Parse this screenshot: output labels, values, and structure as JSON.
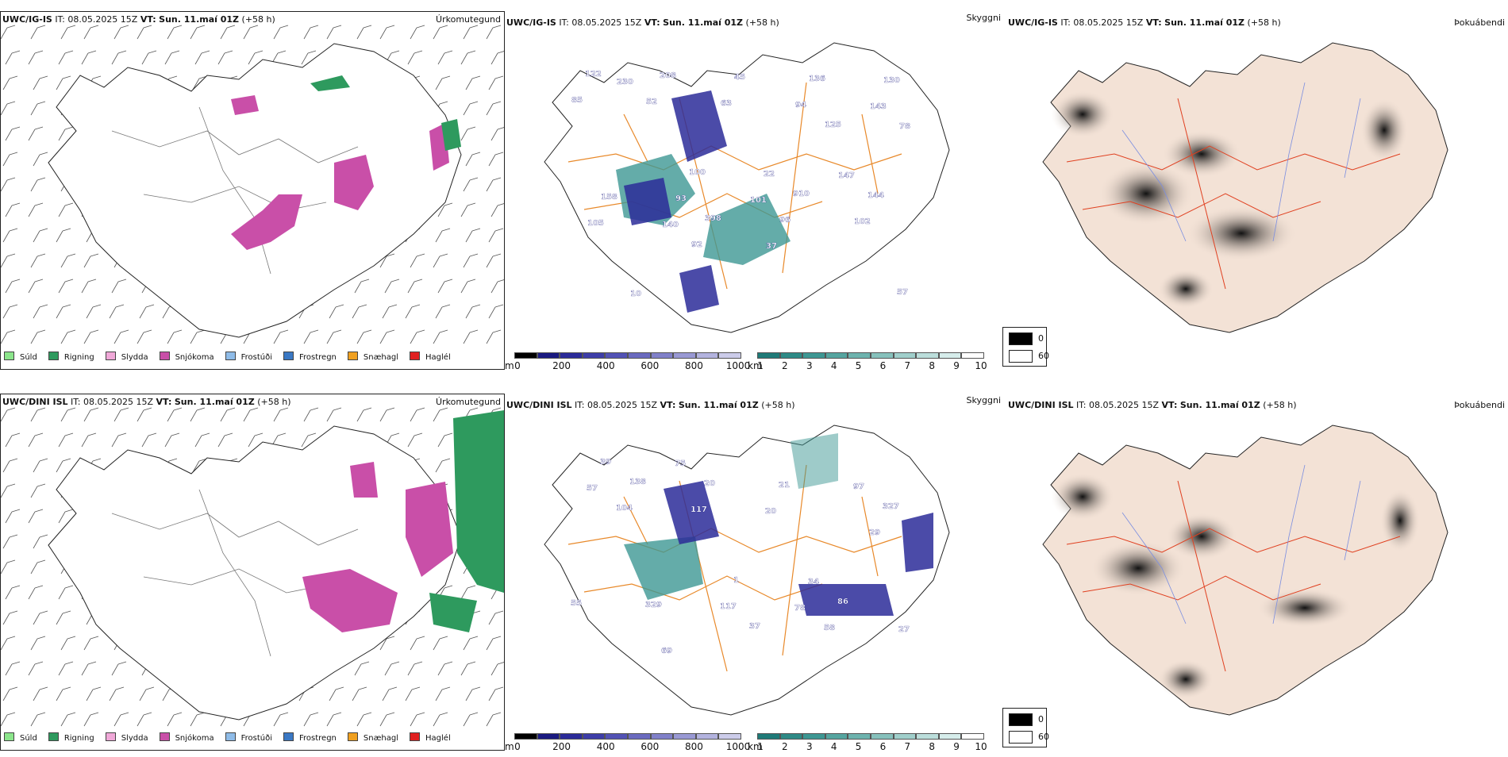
{
  "rows": [
    {
      "model": "UWC/IG-IS",
      "it_label": "IT:",
      "it_value": "08.05.2025 15Z",
      "vt_label": "VT:",
      "vt_value": "Sun. 11.maí 01Z",
      "lead": "(+58 h)"
    },
    {
      "model": "UWC/DINI ISL",
      "it_label": "IT:",
      "it_value": "08.05.2025 15Z",
      "vt_label": "VT:",
      "vt_value": "Sun. 11.maí 01Z",
      "lead": "(+58 h)"
    }
  ],
  "panel_titles": {
    "precip_type": "Úrkomutegund",
    "visibility": "Skyggni",
    "fog": "Þokuábendi"
  },
  "precip_legend": [
    {
      "label": "Súld",
      "color": "#8be58b"
    },
    {
      "label": "Rigning",
      "color": "#2e9a5e"
    },
    {
      "label": "Slydda",
      "color": "#f0a8d8"
    },
    {
      "label": "Snjókoma",
      "color": "#c94fa8"
    },
    {
      "label": "Frostúði",
      "color": "#8fbce8"
    },
    {
      "label": "Frostregn",
      "color": "#3a78c4"
    },
    {
      "label": "Snæhagl",
      "color": "#f0a020"
    },
    {
      "label": "Haglél",
      "color": "#e02020"
    }
  ],
  "colorbar_m": {
    "unit": "m",
    "ticks": [
      "0",
      "200",
      "400",
      "600",
      "800",
      "1000"
    ],
    "colors": [
      "#000000",
      "#1a1a80",
      "#2b2b99",
      "#3d3da8",
      "#5252b5",
      "#6a6abf",
      "#8080c9",
      "#9999d4",
      "#b3b3df",
      "#ccccea"
    ]
  },
  "colorbar_km": {
    "unit": "km",
    "ticks": [
      "1",
      "2",
      "3",
      "4",
      "5",
      "6",
      "7",
      "8",
      "9",
      "10"
    ],
    "colors": [
      "#1f7a78",
      "#2e8a86",
      "#3d9793",
      "#55a5a0",
      "#6db3ae",
      "#86c1bc",
      "#a0cfcb",
      "#bbdedb",
      "#d6edeb",
      "#ffffff"
    ]
  },
  "fog_key": [
    {
      "label": "0",
      "color": "#000000"
    },
    {
      "label": "60",
      "color": "#ffffff"
    }
  ],
  "colors": {
    "roads": "#e8892a",
    "coast": "#222222",
    "fog_land": "#f3e2d6",
    "fog_roads": "#e04020",
    "fog_rivers": "#7b8ee0"
  },
  "vis_labels_top": [
    "122",
    "100",
    "910",
    "57",
    "208",
    "22",
    "144",
    "10",
    "45",
    "147",
    "158",
    "398",
    "136",
    "85",
    "93",
    "96",
    "130",
    "52",
    "101",
    "102",
    "230",
    "63",
    "125",
    "105",
    "92",
    "94",
    "78",
    "140",
    "37",
    "143"
  ],
  "vis_labels_bottom": [
    "138",
    "1",
    "86",
    "39",
    "20",
    "34",
    "55",
    "75",
    "21",
    "327",
    "329",
    "37",
    "97",
    "104",
    "117",
    "58",
    "57",
    "117",
    "78",
    "27",
    "69",
    "20",
    "29"
  ]
}
